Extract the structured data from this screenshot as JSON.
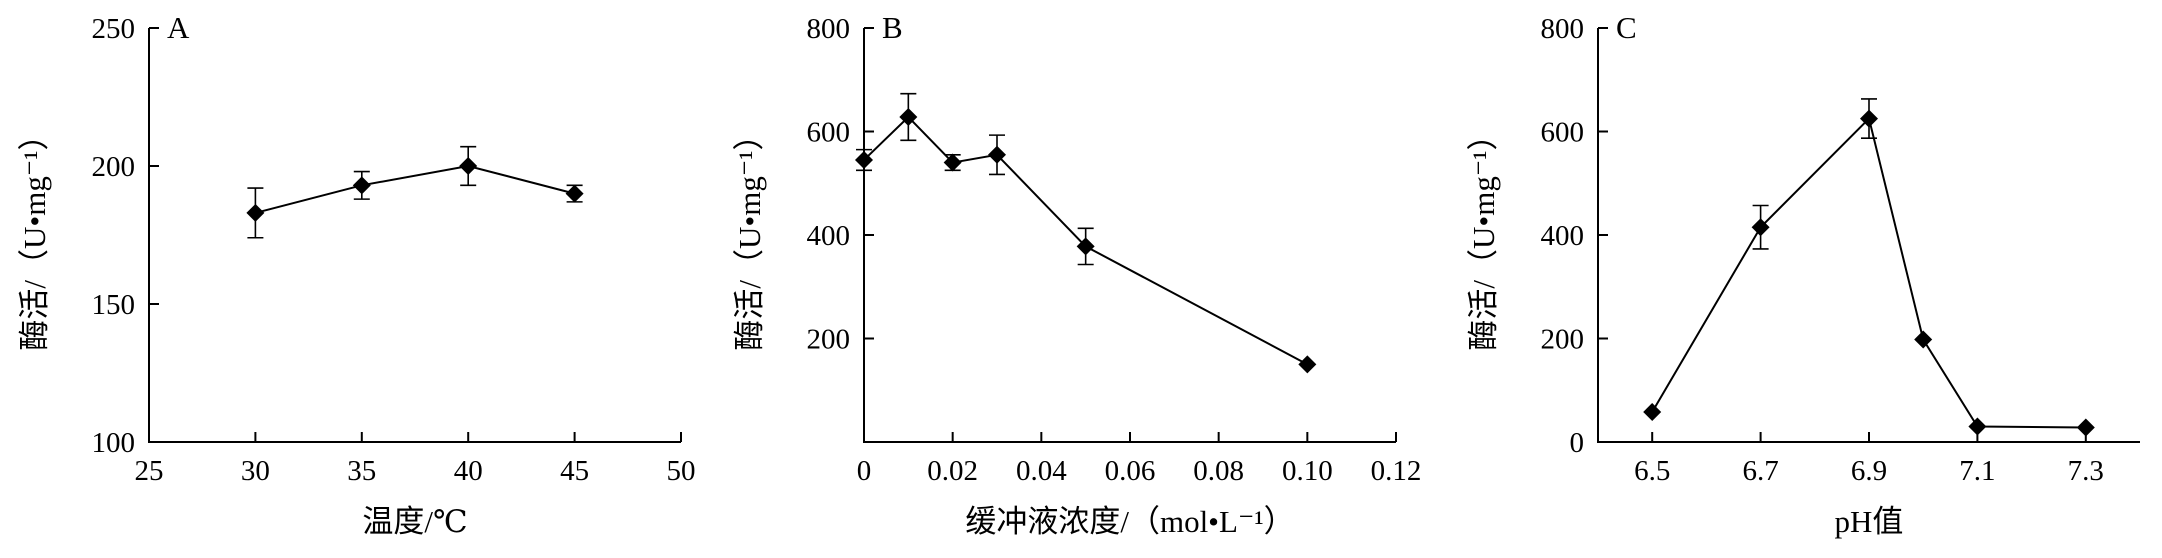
{
  "chart_data": [
    {
      "type": "line",
      "panel_label": "A",
      "xlabel": "温度/℃",
      "ylabel": "酶活/（U•mg⁻¹）",
      "xlim": [
        25,
        50
      ],
      "ylim": [
        100,
        250
      ],
      "x_ticks": [
        25,
        30,
        35,
        40,
        45,
        50
      ],
      "x_tick_labels": [
        "25",
        "30",
        "35",
        "40",
        "45",
        "50"
      ],
      "y_ticks": [
        100,
        150,
        200,
        250
      ],
      "y_tick_labels": [
        "100",
        "150",
        "200",
        "250"
      ],
      "points": [
        {
          "x": 30,
          "y": 183,
          "err": 9
        },
        {
          "x": 35,
          "y": 193,
          "err": 5
        },
        {
          "x": 40,
          "y": 200,
          "err": 7
        },
        {
          "x": 45,
          "y": 190,
          "err": 3
        }
      ]
    },
    {
      "type": "line",
      "panel_label": "B",
      "xlabel": "缓冲液浓度/（mol•L⁻¹）",
      "ylabel": "酶活/（U•mg⁻¹）",
      "xlim": [
        0,
        0.12
      ],
      "ylim": [
        0,
        800
      ],
      "x_ticks": [
        0,
        0.02,
        0.04,
        0.06,
        0.08,
        0.1,
        0.12
      ],
      "x_tick_labels": [
        "0",
        "0.02",
        "0.04",
        "0.06",
        "0.08",
        "0.10",
        "0.12"
      ],
      "y_ticks": [
        200,
        400,
        600,
        800
      ],
      "y_tick_labels": [
        "200",
        "400",
        "600",
        "800"
      ],
      "points": [
        {
          "x": 0,
          "y": 545,
          "err": 20
        },
        {
          "x": 0.01,
          "y": 628,
          "err": 45
        },
        {
          "x": 0.02,
          "y": 540,
          "err": 15
        },
        {
          "x": 0.03,
          "y": 555,
          "err": 38
        },
        {
          "x": 0.05,
          "y": 378,
          "err": 35
        },
        {
          "x": 0.1,
          "y": 150,
          "err": 0
        }
      ]
    },
    {
      "type": "line",
      "panel_label": "C",
      "xlabel": "pH值",
      "ylabel": "酶活/（U•mg⁻¹）",
      "xlim": [
        6.4,
        7.4
      ],
      "ylim": [
        0,
        800
      ],
      "x_ticks": [
        6.5,
        6.7,
        6.9,
        7.1,
        7.3
      ],
      "x_tick_labels": [
        "6.5",
        "6.7",
        "6.9",
        "7.1",
        "7.3"
      ],
      "y_ticks": [
        0,
        200,
        400,
        600,
        800
      ],
      "y_tick_labels": [
        "0",
        "200",
        "400",
        "600",
        "800"
      ],
      "points": [
        {
          "x": 6.5,
          "y": 58,
          "err": 0
        },
        {
          "x": 6.7,
          "y": 415,
          "err": 42
        },
        {
          "x": 6.9,
          "y": 625,
          "err": 38
        },
        {
          "x": 7.0,
          "y": 198,
          "err": 0
        },
        {
          "x": 7.1,
          "y": 30,
          "err": 0
        },
        {
          "x": 7.3,
          "y": 28,
          "err": 0
        }
      ]
    }
  ]
}
